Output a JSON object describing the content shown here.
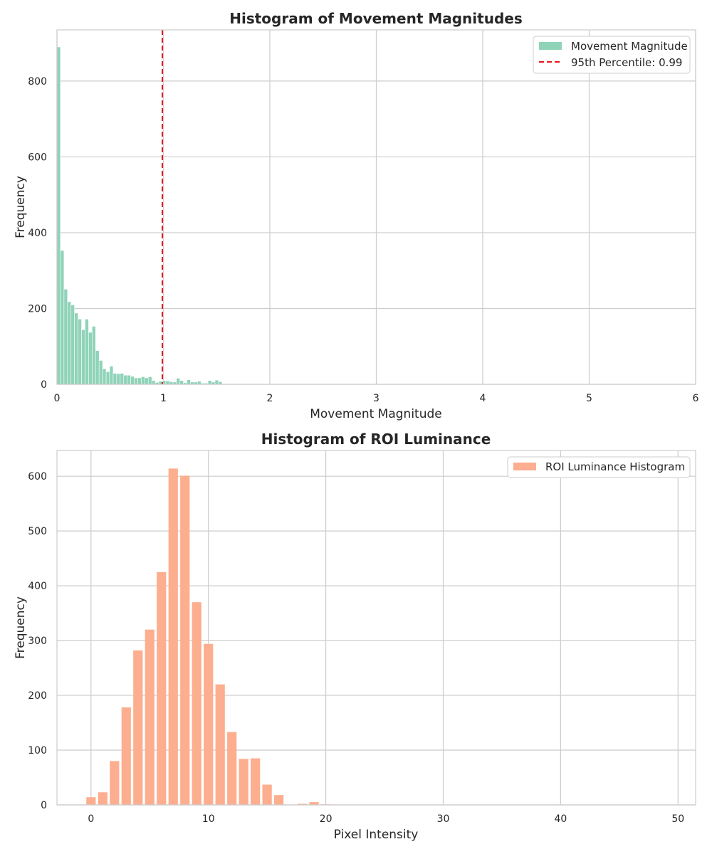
{
  "chart_data": [
    {
      "type": "bar",
      "title": "Histogram of Movement Magnitudes",
      "xlabel": "Movement Magnitude",
      "ylabel": "Frequency",
      "xlim": [
        0,
        6
      ],
      "ylim": [
        0,
        935
      ],
      "xticks": [
        "0",
        "1",
        "2",
        "3",
        "4",
        "5",
        "6"
      ],
      "yticks": [
        "0",
        "200",
        "400",
        "600",
        "800"
      ],
      "grid": true,
      "legend_position": "upper-right",
      "bin_width": 0.033,
      "bin_start": 0,
      "values": [
        890,
        353,
        251,
        218,
        209,
        188,
        172,
        144,
        172,
        137,
        153,
        89,
        63,
        41,
        33,
        48,
        29,
        28,
        29,
        24,
        24,
        21,
        17,
        17,
        20,
        17,
        20,
        10,
        5,
        8,
        10,
        9,
        7,
        6,
        16,
        10,
        4,
        12,
        6,
        6,
        8,
        3,
        3,
        10,
        6,
        11,
        7,
        0
      ],
      "series": [
        {
          "name": "Movement Magnitude",
          "color": "#8fd3b9"
        }
      ],
      "reference_line": {
        "label": "95th Percentile: 0.99",
        "x": 0.99,
        "color": "#e8141b",
        "style": "dashed"
      }
    },
    {
      "type": "bar",
      "title": "Histogram of ROI Luminance",
      "xlabel": "Pixel Intensity",
      "ylabel": "Frequency",
      "xlim": [
        -2.9,
        51.5
      ],
      "ylim": [
        0,
        647
      ],
      "xticks": [
        "0",
        "10",
        "20",
        "30",
        "40",
        "50"
      ],
      "yticks": [
        "0",
        "100",
        "200",
        "300",
        "400",
        "500",
        "600"
      ],
      "grid": true,
      "legend_position": "upper-right",
      "bar_width": 0.8,
      "x": [
        0,
        1,
        2,
        3,
        4,
        5,
        6,
        7,
        8,
        9,
        10,
        11,
        12,
        13,
        14,
        15,
        16,
        17,
        18,
        19,
        20
      ],
      "values": [
        14,
        23,
        80,
        178,
        282,
        320,
        425,
        614,
        601,
        370,
        294,
        220,
        133,
        84,
        85,
        37,
        18,
        0,
        2,
        5,
        1
      ],
      "series": [
        {
          "name": "ROI Luminance Histogram",
          "color": "#fcae8f"
        }
      ]
    }
  ]
}
